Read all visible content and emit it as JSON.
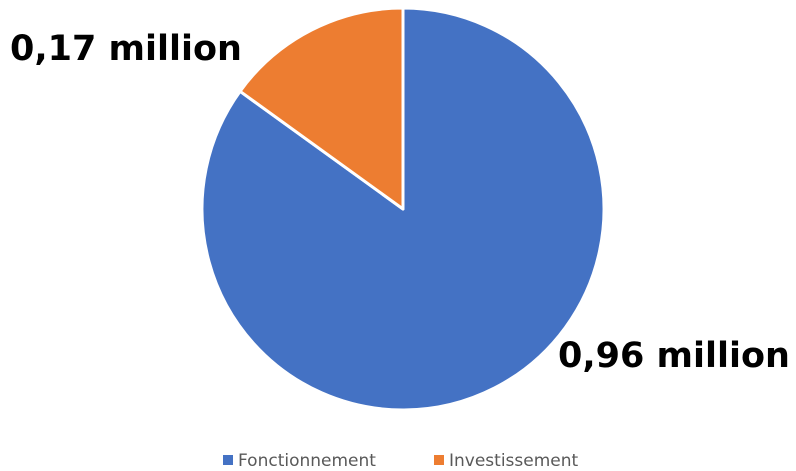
{
  "chart_data": {
    "type": "pie",
    "title": "",
    "slices": [
      {
        "name": "Fonctionnement",
        "value": 0.96,
        "label": "0,96 million",
        "color": "#4472C4"
      },
      {
        "name": "Investissement",
        "value": 0.17,
        "label": "0,17 million",
        "color": "#ED7D31"
      }
    ],
    "start_angle_deg": 0,
    "direction": "clockwise",
    "slice_border_color": "#FFFFFF",
    "legend": {
      "placement": "bottom",
      "entries": [
        "Fonctionnement",
        "Investissement"
      ]
    }
  }
}
